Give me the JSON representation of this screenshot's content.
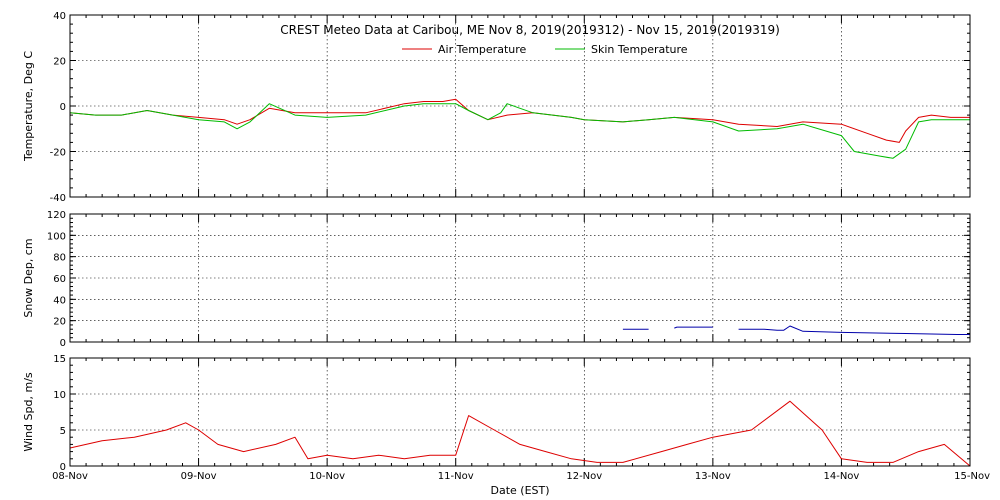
{
  "chart_data": {
    "type": "line",
    "title": "CREST Meteo Data at Caribou, ME   Nov  8, 2019(2019312) - Nov 15, 2019(2019319)",
    "xlabel": "Date (EST)",
    "x_ticks": [
      "08-Nov",
      "09-Nov",
      "10-Nov",
      "11-Nov",
      "12-Nov",
      "13-Nov",
      "14-Nov",
      "15-Nov"
    ],
    "xlim": [
      0,
      7
    ],
    "grid": true,
    "legend_position": "top-center",
    "panels": [
      {
        "name": "temperature",
        "ylabel": "Temperature, Deg C",
        "ylim": [
          -40,
          40
        ],
        "y_ticks": [
          "40",
          "20",
          "0",
          "-20",
          "-40"
        ],
        "y_tick_values": [
          40,
          20,
          0,
          -20,
          -40
        ],
        "series": [
          {
            "name": "Air Temperature",
            "color": "#dd0000",
            "x": [
              0,
              0.2,
              0.4,
              0.6,
              0.8,
              1.0,
              1.2,
              1.3,
              1.4,
              1.55,
              1.75,
              2.0,
              2.3,
              2.6,
              2.75,
              2.9,
              3.0,
              3.1,
              3.25,
              3.4,
              3.6,
              3.9,
              4.0,
              4.3,
              4.5,
              4.7,
              5.0,
              5.2,
              5.5,
              5.7,
              6.0,
              6.2,
              6.35,
              6.45,
              6.5,
              6.6,
              6.7,
              6.85,
              7.0
            ],
            "y": [
              -3,
              -4,
              -4,
              -2,
              -4,
              -5,
              -6,
              -8,
              -6,
              -1,
              -3,
              -3,
              -3,
              1,
              2,
              2,
              3,
              -2,
              -6,
              -4,
              -3,
              -5,
              -6,
              -7,
              -6,
              -5,
              -6,
              -8,
              -9,
              -7,
              -8,
              -12,
              -15,
              -16,
              -11,
              -5,
              -4,
              -5,
              -5
            ]
          },
          {
            "name": "Skin Temperature",
            "color": "#00bb00",
            "x": [
              0,
              0.2,
              0.4,
              0.6,
              0.8,
              1.0,
              1.2,
              1.3,
              1.4,
              1.55,
              1.75,
              2.0,
              2.3,
              2.6,
              2.75,
              2.9,
              3.0,
              3.1,
              3.25,
              3.35,
              3.4,
              3.5,
              3.6,
              3.9,
              4.0,
              4.3,
              4.5,
              4.7,
              5.0,
              5.2,
              5.5,
              5.7,
              6.0,
              6.1,
              6.3,
              6.4,
              6.5,
              6.6,
              6.7,
              6.85,
              7.0
            ],
            "y": [
              -3,
              -4,
              -4,
              -2,
              -4,
              -6,
              -7,
              -10,
              -7,
              1,
              -4,
              -5,
              -4,
              0,
              1,
              1,
              1,
              -2,
              -6,
              -3,
              1,
              -1,
              -3,
              -5,
              -6,
              -7,
              -6,
              -5,
              -7,
              -11,
              -10,
              -8,
              -13,
              -20,
              -22,
              -23,
              -19,
              -7,
              -6,
              -6,
              -6
            ]
          }
        ]
      },
      {
        "name": "snow-depth",
        "ylabel": "Snow Dep, cm",
        "ylim": [
          0,
          120
        ],
        "y_ticks": [
          "120",
          "100",
          "80",
          "60",
          "40",
          "20",
          "0"
        ],
        "y_tick_values": [
          120,
          100,
          80,
          60,
          40,
          20,
          0
        ],
        "series": [
          {
            "name": "",
            "color": "#0000aa",
            "x": [
              4.3,
              4.5,
              4.52,
              4.58,
              4.62,
              4.7,
              4.72,
              4.78,
              5.0,
              5.02,
              5.08,
              5.12,
              5.2,
              5.3,
              5.4,
              5.5,
              5.55,
              5.6,
              5.7,
              6.0,
              6.5,
              6.9,
              7.0
            ],
            "y": [
              12,
              12,
              null,
              null,
              null,
              13,
              14,
              14,
              14,
              null,
              null,
              null,
              12,
              12,
              12,
              11,
              11,
              15,
              10,
              9,
              8,
              7,
              7
            ]
          }
        ]
      },
      {
        "name": "wind-speed",
        "ylabel": "Wind Spd, m/s",
        "ylim": [
          0,
          15
        ],
        "y_ticks": [
          "15",
          "10",
          "5",
          "0"
        ],
        "y_tick_values": [
          15,
          10,
          5,
          0
        ],
        "series": [
          {
            "name": "",
            "color": "#dd0000",
            "x": [
              0,
              0.25,
              0.5,
              0.75,
              0.9,
              1.0,
              1.15,
              1.35,
              1.6,
              1.75,
              1.85,
              2.0,
              2.2,
              2.4,
              2.6,
              2.8,
              3.0,
              3.1,
              3.3,
              3.5,
              3.7,
              3.9,
              4.1,
              4.3,
              4.6,
              4.8,
              5.0,
              5.3,
              5.6,
              5.85,
              6.0,
              6.2,
              6.4,
              6.6,
              6.8,
              7.0
            ],
            "y": [
              2.5,
              3.5,
              4,
              5,
              6,
              5,
              3,
              2,
              3,
              4,
              1,
              1.5,
              1,
              1.5,
              1,
              1.5,
              1.5,
              7,
              5,
              3,
              2,
              1,
              0.5,
              0.5,
              2,
              3,
              4,
              5,
              9,
              5,
              1,
              0.5,
              0.5,
              2,
              3,
              0
            ]
          }
        ]
      }
    ]
  }
}
